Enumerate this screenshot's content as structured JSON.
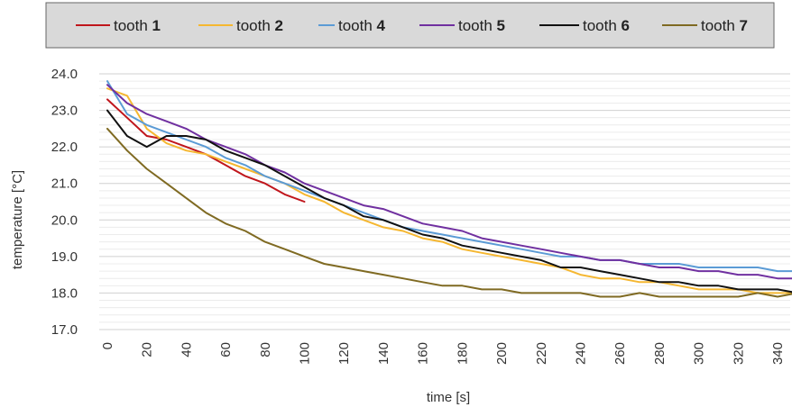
{
  "chart_data": {
    "type": "line",
    "xlabel": "time [s]",
    "ylabel": "temperature [°C]",
    "xlim": [
      0,
      350
    ],
    "ylim": [
      17.0,
      24.0
    ],
    "x_ticks": [
      "0",
      "20",
      "40",
      "60",
      "80",
      "100",
      "120",
      "140",
      "160",
      "180",
      "200",
      "220",
      "240",
      "260",
      "280",
      "300",
      "320",
      "340"
    ],
    "y_ticks": [
      "17.0",
      "18.0",
      "19.0",
      "20.0",
      "21.0",
      "22.0",
      "23.0",
      "24.0"
    ],
    "legend_position": "top",
    "grid": true,
    "series": [
      {
        "name": "tooth 1",
        "label": "tooth",
        "num": "1",
        "color": "#c0161c",
        "x": [
          0,
          10,
          20,
          30,
          40,
          50,
          60,
          70,
          80,
          90,
          100
        ],
        "y": [
          23.3,
          22.8,
          22.3,
          22.2,
          22.0,
          21.8,
          21.5,
          21.2,
          21.0,
          20.7,
          20.5
        ]
      },
      {
        "name": "tooth 2",
        "label": "tooth",
        "num": "2",
        "color": "#f5b731",
        "x": [
          0,
          10,
          20,
          30,
          40,
          50,
          60,
          70,
          80,
          90,
          100,
          110,
          120,
          130,
          140,
          150,
          160,
          170,
          180,
          190,
          200,
          210,
          220,
          230,
          240,
          250,
          260,
          270,
          280,
          290,
          300,
          310,
          320,
          330,
          340,
          350
        ],
        "y": [
          23.6,
          23.4,
          22.5,
          22.1,
          21.9,
          21.8,
          21.6,
          21.4,
          21.2,
          21.0,
          20.7,
          20.5,
          20.2,
          20.0,
          19.8,
          19.7,
          19.5,
          19.4,
          19.2,
          19.1,
          19.0,
          18.9,
          18.8,
          18.7,
          18.5,
          18.4,
          18.4,
          18.3,
          18.3,
          18.2,
          18.1,
          18.1,
          18.1,
          18.0,
          18.0,
          18.0
        ]
      },
      {
        "name": "tooth 4",
        "label": "tooth",
        "num": "4",
        "color": "#5b9bd5",
        "x": [
          0,
          10,
          20,
          30,
          40,
          50,
          60,
          70,
          80,
          90,
          100,
          110,
          120,
          130,
          140,
          150,
          160,
          170,
          180,
          190,
          200,
          210,
          220,
          230,
          240,
          250,
          260,
          270,
          280,
          290,
          300,
          310,
          320,
          330,
          340,
          350
        ],
        "y": [
          23.8,
          22.9,
          22.6,
          22.4,
          22.2,
          22.0,
          21.7,
          21.5,
          21.2,
          21.0,
          20.8,
          20.6,
          20.4,
          20.2,
          20.0,
          19.8,
          19.7,
          19.6,
          19.5,
          19.4,
          19.3,
          19.2,
          19.1,
          19.0,
          19.0,
          18.9,
          18.9,
          18.8,
          18.8,
          18.8,
          18.7,
          18.7,
          18.7,
          18.7,
          18.6,
          18.6
        ]
      },
      {
        "name": "tooth 5",
        "label": "tooth",
        "num": "5",
        "color": "#7030a0",
        "x": [
          0,
          10,
          20,
          30,
          40,
          50,
          60,
          70,
          80,
          90,
          100,
          110,
          120,
          130,
          140,
          150,
          160,
          170,
          180,
          190,
          200,
          210,
          220,
          230,
          240,
          250,
          260,
          270,
          280,
          290,
          300,
          310,
          320,
          330,
          340,
          350
        ],
        "y": [
          23.7,
          23.2,
          22.9,
          22.7,
          22.5,
          22.2,
          22.0,
          21.8,
          21.5,
          21.3,
          21.0,
          20.8,
          20.6,
          20.4,
          20.3,
          20.1,
          19.9,
          19.8,
          19.7,
          19.5,
          19.4,
          19.3,
          19.2,
          19.1,
          19.0,
          18.9,
          18.9,
          18.8,
          18.7,
          18.7,
          18.6,
          18.6,
          18.5,
          18.5,
          18.4,
          18.4
        ]
      },
      {
        "name": "tooth 6",
        "label": "tooth",
        "num": "6",
        "color": "#111111",
        "x": [
          0,
          10,
          20,
          30,
          40,
          50,
          60,
          70,
          80,
          90,
          100,
          110,
          120,
          130,
          140,
          150,
          160,
          170,
          180,
          190,
          200,
          210,
          220,
          230,
          240,
          250,
          260,
          270,
          280,
          290,
          300,
          310,
          320,
          330,
          340,
          350
        ],
        "y": [
          23.0,
          22.3,
          22.0,
          22.3,
          22.3,
          22.2,
          21.9,
          21.7,
          21.5,
          21.2,
          20.9,
          20.6,
          20.4,
          20.1,
          20.0,
          19.8,
          19.6,
          19.5,
          19.3,
          19.2,
          19.1,
          19.0,
          18.9,
          18.7,
          18.7,
          18.6,
          18.5,
          18.4,
          18.3,
          18.3,
          18.2,
          18.2,
          18.1,
          18.1,
          18.1,
          18.0
        ]
      },
      {
        "name": "tooth 7",
        "label": "tooth",
        "num": "7",
        "color": "#7f6a22",
        "x": [
          0,
          10,
          20,
          30,
          40,
          50,
          60,
          70,
          80,
          90,
          100,
          110,
          120,
          130,
          140,
          150,
          160,
          170,
          180,
          190,
          200,
          210,
          220,
          230,
          240,
          250,
          260,
          270,
          280,
          290,
          300,
          310,
          320,
          330,
          340,
          350
        ],
        "y": [
          22.5,
          21.9,
          21.4,
          21.0,
          20.6,
          20.2,
          19.9,
          19.7,
          19.4,
          19.2,
          19.0,
          18.8,
          18.7,
          18.6,
          18.5,
          18.4,
          18.3,
          18.2,
          18.2,
          18.1,
          18.1,
          18.0,
          18.0,
          18.0,
          18.0,
          17.9,
          17.9,
          18.0,
          17.9,
          17.9,
          17.9,
          17.9,
          17.9,
          18.0,
          17.9,
          18.0
        ]
      }
    ]
  }
}
